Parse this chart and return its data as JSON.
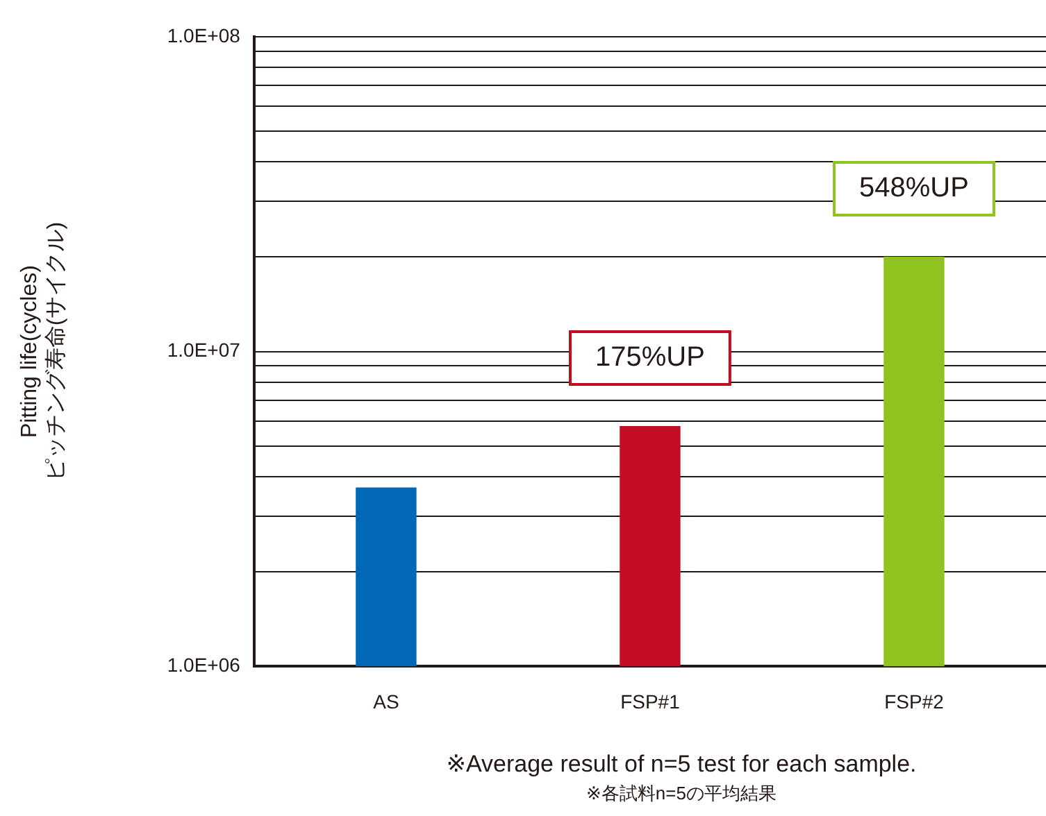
{
  "chart_data": {
    "type": "bar",
    "ylabel": "Pitting life(cycles)\nピッチング寿命(サイクル)",
    "categories": [
      "AS",
      "FSP#1",
      "FSP#2"
    ],
    "values": [
      3700000,
      5800000,
      20000000
    ],
    "colors": [
      "#0068b7",
      "#c30d23",
      "#8fc31f"
    ],
    "log": true,
    "ylim": [
      1000000,
      100000000
    ],
    "yticks": [
      {
        "value": 1000000,
        "label": "1.0E+06"
      },
      {
        "value": 2000000,
        "label": null
      },
      {
        "value": 3000000,
        "label": null
      },
      {
        "value": 4000000,
        "label": null
      },
      {
        "value": 5000000,
        "label": null
      },
      {
        "value": 6000000,
        "label": null
      },
      {
        "value": 7000000,
        "label": null
      },
      {
        "value": 8000000,
        "label": null
      },
      {
        "value": 9000000,
        "label": null
      },
      {
        "value": 10000000,
        "label": "1.0E+07"
      },
      {
        "value": 20000000,
        "label": null
      },
      {
        "value": 30000000,
        "label": null
      },
      {
        "value": 40000000,
        "label": null
      },
      {
        "value": 50000000,
        "label": null
      },
      {
        "value": 60000000,
        "label": null
      },
      {
        "value": 70000000,
        "label": null
      },
      {
        "value": 80000000,
        "label": null
      },
      {
        "value": 90000000,
        "label": null
      },
      {
        "value": 100000000,
        "label": "1.0E+08"
      }
    ],
    "grid": "y",
    "legend": false,
    "annotations": [
      {
        "text": "175%UP",
        "x": "FSP#1",
        "y": 5800000
      },
      {
        "text": "548%UP",
        "x": "FSP#2",
        "y": 20000000
      },
      "※Average result of n=5 test for each sample.",
      "※各試料n=5の平均結果"
    ]
  }
}
